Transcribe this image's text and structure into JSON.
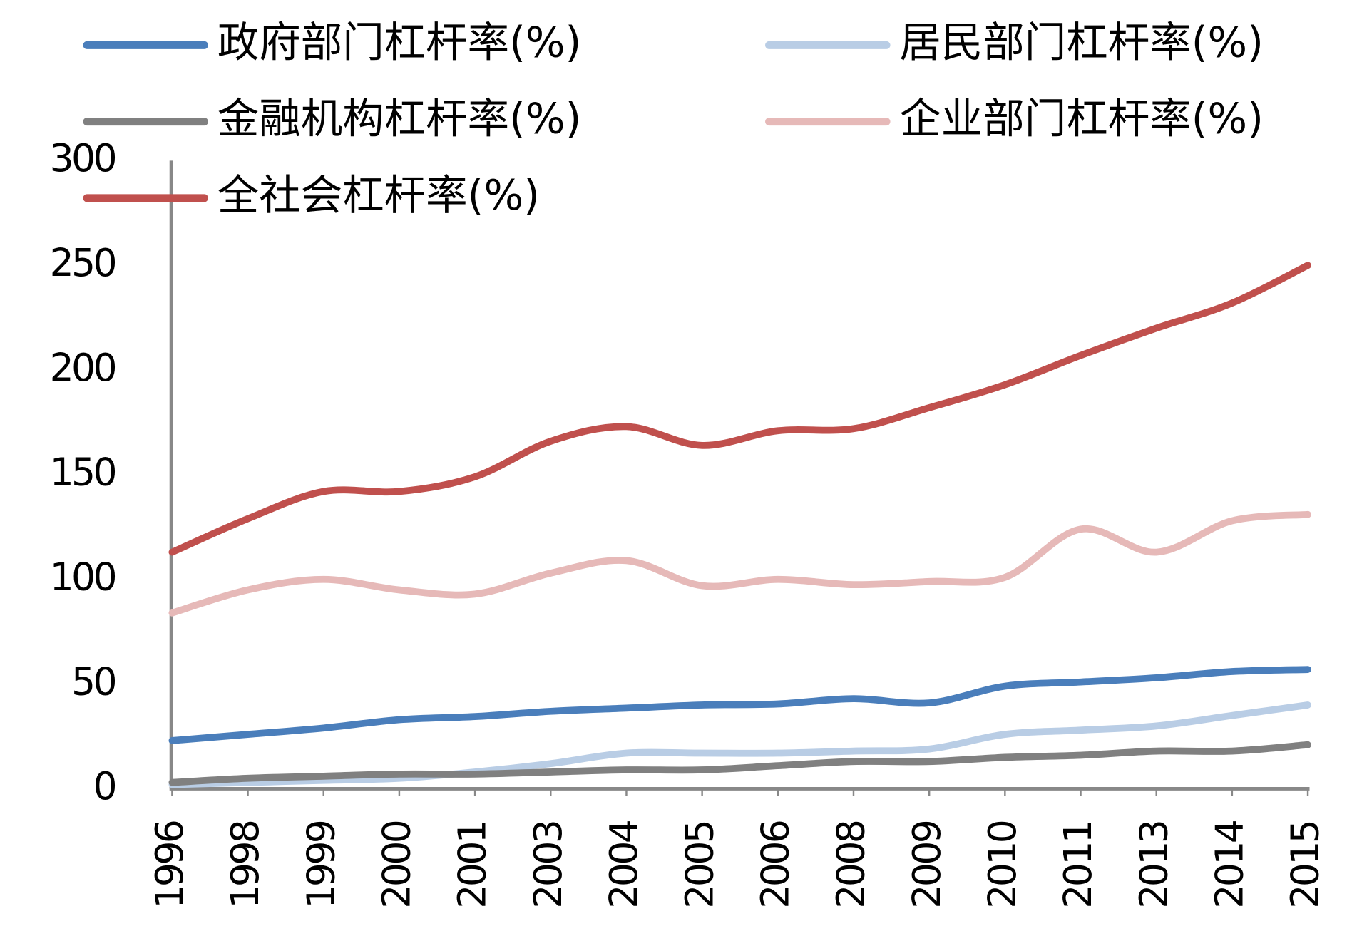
{
  "chart_data": {
    "type": "line",
    "categories": [
      "1996",
      "1998",
      "1999",
      "2000",
      "2001",
      "2003",
      "2004",
      "2005",
      "2006",
      "2008",
      "2009",
      "2010",
      "2011",
      "2013",
      "2014",
      "2015"
    ],
    "series": [
      {
        "name": "政府部门杠杆率(%)",
        "color": "#4a7ebb",
        "values": [
          23,
          26,
          29,
          33,
          34.5,
          37,
          38.5,
          40,
          40.5,
          43,
          41,
          49,
          51,
          53,
          56,
          57
        ]
      },
      {
        "name": "居民部门杠杆率(%)",
        "color": "#b9cde5",
        "values": [
          2,
          3,
          4,
          5,
          8,
          12,
          17,
          17,
          17,
          18,
          19,
          26,
          28,
          30,
          35,
          40
        ]
      },
      {
        "name": "金融机构杠杆率(%)",
        "color": "#808080",
        "values": [
          3,
          5,
          6,
          7,
          7,
          8,
          9,
          9,
          11,
          13,
          13,
          15,
          16,
          18,
          18,
          21
        ]
      },
      {
        "name": "企业部门杠杆率(%)",
        "color": "#e6b9b8",
        "values": [
          84,
          95,
          100,
          95,
          93,
          103,
          109,
          97,
          100,
          97.5,
          99,
          101,
          124,
          113,
          128,
          131
        ]
      },
      {
        "name": "全社会杠杆率(%)",
        "color": "#c0504d",
        "values": [
          113,
          129,
          142,
          142,
          149,
          166,
          173,
          164,
          171,
          172,
          182,
          193,
          207,
          220,
          232,
          250
        ]
      }
    ],
    "ylim": [
      0,
      300
    ],
    "yticks": [
      0,
      50,
      100,
      150,
      200,
      250,
      300
    ],
    "grid": false
  }
}
